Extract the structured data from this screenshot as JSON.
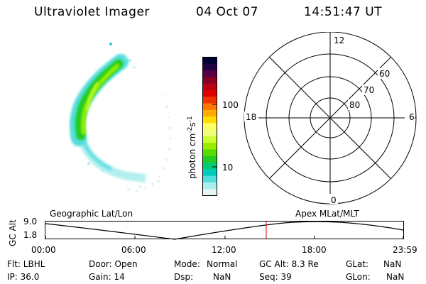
{
  "header": {
    "instrument": "Ultraviolet Imager",
    "date": "04 Oct 07",
    "time": "14:51:47 UT"
  },
  "colorbar": {
    "unit_label": "photon cm",
    "unit_sup1": "-2",
    "unit_mid": "s",
    "unit_sup2": "-1",
    "tick_100": "100",
    "tick_10": "10",
    "colors": [
      "#000033",
      "#220044",
      "#550044",
      "#880022",
      "#bb0011",
      "#dd0000",
      "#ee3300",
      "#ff7700",
      "#ffaa00",
      "#ffdd00",
      "#ffff66",
      "#eeff77",
      "#ccff33",
      "#99ee00",
      "#55dd00",
      "#22cc22",
      "#00cc77",
      "#00ccbb",
      "#55dddd",
      "#aaeeee",
      "#e6f5f5"
    ]
  },
  "polar": {
    "mlt_12": "12",
    "mlt_18": "18",
    "mlt_6": "6",
    "mlt_0": "0",
    "lat_60": "60",
    "lat_70": "70",
    "lat_80": "80"
  },
  "altplot": {
    "ylabel": "GC Alt",
    "y_top": "9.0",
    "y_bottom": "1.8",
    "left_label": "Geographic Lat/Lon",
    "right_label": "Apex MLat/MLT",
    "marker_color": "#dd0000",
    "x_ticks": [
      "00:00",
      "06:00",
      "12:00",
      "18:00",
      "23:59"
    ]
  },
  "footer": {
    "filter": "Flt: LBHL",
    "ip": "IP: 36.0",
    "door": "Door: Open",
    "gain": "Gain: 14",
    "mode_label": "Mode:",
    "mode_value": "Normal",
    "dsp_label": "Dsp:",
    "dsp_value": "NaN",
    "gc_alt": "GC Alt: 8.3 Re",
    "seq": "Seq: 39",
    "glat_label": "GLat:",
    "glat_value": "NaN",
    "glon_label": "GLon:",
    "glon_value": "NaN"
  }
}
